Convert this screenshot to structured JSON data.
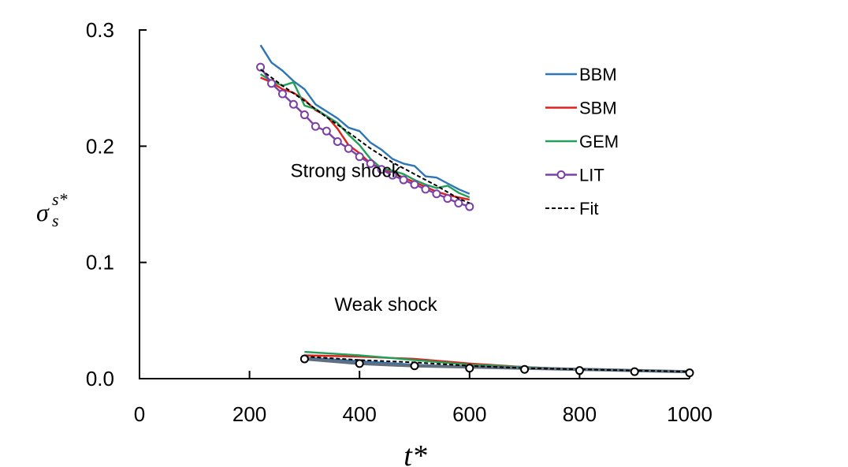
{
  "chart_data": {
    "type": "line",
    "title": "",
    "xlabel": "t*",
    "ylabel": "σ",
    "ylabel_subscript": "s",
    "ylabel_superscript": "s*",
    "xlim": [
      0,
      1000
    ],
    "ylim": [
      0,
      0.3
    ],
    "x_ticks": [
      0,
      200,
      400,
      600,
      800,
      1000
    ],
    "x_tick_labels": [
      "0",
      "200",
      "400",
      "600",
      "800",
      "1000"
    ],
    "y_ticks": [
      0,
      0.1,
      0.2,
      0.3
    ],
    "y_tick_labels": [
      "0.0",
      "0.1",
      "0.2",
      "0.3"
    ],
    "grid": false,
    "legend_position": "top-right",
    "annotations": [
      {
        "text": "Strong shock",
        "x": 220,
        "y": 0.17
      },
      {
        "text": "Weak shock",
        "x": 300,
        "y": 0.055
      }
    ],
    "series": [
      {
        "name": "BBM",
        "color": "#2E75B6",
        "group": "strong",
        "style": "solid",
        "x": [
          220,
          240,
          260,
          280,
          300,
          320,
          340,
          360,
          380,
          400,
          420,
          440,
          460,
          480,
          500,
          520,
          540,
          560,
          580,
          600
        ],
        "y": [
          0.287,
          0.272,
          0.265,
          0.256,
          0.249,
          0.236,
          0.23,
          0.224,
          0.216,
          0.213,
          0.203,
          0.197,
          0.189,
          0.185,
          0.183,
          0.174,
          0.173,
          0.168,
          0.163,
          0.159
        ]
      },
      {
        "name": "SBM",
        "color": "#E0201B",
        "group": "strong",
        "style": "solid",
        "x": [
          220,
          240,
          260,
          280,
          300,
          320,
          340,
          360,
          380,
          400,
          420,
          440,
          460,
          480,
          500,
          520,
          540,
          560,
          580,
          600
        ],
        "y": [
          0.259,
          0.255,
          0.249,
          0.246,
          0.24,
          0.231,
          0.226,
          0.215,
          0.201,
          0.194,
          0.185,
          0.181,
          0.177,
          0.173,
          0.169,
          0.165,
          0.161,
          0.158,
          0.156,
          0.154
        ]
      },
      {
        "name": "GEM",
        "color": "#22A05A",
        "group": "strong",
        "style": "solid",
        "x": [
          220,
          240,
          260,
          280,
          300,
          320,
          340,
          360,
          380,
          400,
          420,
          440,
          460,
          480,
          500,
          520,
          540,
          560,
          580,
          600
        ],
        "y": [
          0.262,
          0.256,
          0.252,
          0.255,
          0.235,
          0.232,
          0.226,
          0.22,
          0.21,
          0.201,
          0.189,
          0.181,
          0.179,
          0.176,
          0.171,
          0.167,
          0.164,
          0.166,
          0.16,
          0.156
        ]
      },
      {
        "name": "LIT",
        "color": "#7A3FA8",
        "group": "strong",
        "style": "solid-marker",
        "x": [
          220,
          240,
          260,
          280,
          300,
          320,
          340,
          360,
          380,
          400,
          420,
          440,
          460,
          480,
          500,
          520,
          540,
          560,
          580,
          600
        ],
        "y": [
          0.268,
          0.254,
          0.245,
          0.236,
          0.227,
          0.217,
          0.213,
          0.204,
          0.198,
          0.191,
          0.185,
          0.18,
          0.175,
          0.171,
          0.167,
          0.163,
          0.159,
          0.155,
          0.151,
          0.148
        ]
      },
      {
        "name": "Fit",
        "color": "#000000",
        "group": "strong",
        "style": "dashed",
        "x": [
          220,
          260,
          300,
          340,
          380,
          420,
          460,
          500,
          540,
          580,
          600
        ],
        "y": [
          0.266,
          0.252,
          0.239,
          0.225,
          0.212,
          0.198,
          0.186,
          0.176,
          0.166,
          0.155,
          0.151
        ]
      },
      {
        "name": "BBM",
        "color": "#2E75B6",
        "group": "weak",
        "style": "solid",
        "x": [
          300,
          400,
          500,
          600,
          700,
          800,
          900,
          1000
        ],
        "y": [
          0.018,
          0.015,
          0.012,
          0.01,
          0.009,
          0.008,
          0.007,
          0.006
        ]
      },
      {
        "name": "SBM",
        "color": "#E0201B",
        "group": "weak",
        "style": "solid",
        "x": [
          300,
          400,
          500,
          600,
          700,
          800,
          900,
          1000
        ],
        "y": [
          0.02,
          0.019,
          0.017,
          0.013,
          0.01,
          0.008,
          0.007,
          0.006
        ]
      },
      {
        "name": "GEM",
        "color": "#22A05A",
        "group": "weak",
        "style": "solid",
        "x": [
          300,
          400,
          500,
          600,
          700,
          800,
          900,
          1000
        ],
        "y": [
          0.023,
          0.02,
          0.016,
          0.012,
          0.01,
          0.008,
          0.007,
          0.006
        ]
      },
      {
        "name": "Gray",
        "color": "#5F6F7F",
        "group": "weak",
        "style": "solid-thick",
        "x": [
          300,
          400,
          500,
          600,
          700,
          800,
          900,
          1000
        ],
        "y": [
          0.017,
          0.013,
          0.011,
          0.01,
          0.009,
          0.008,
          0.007,
          0.006
        ]
      },
      {
        "name": "Fit",
        "color": "#000000",
        "group": "weak",
        "style": "dashed",
        "x": [
          300,
          400,
          500,
          600,
          700,
          800,
          900,
          1000
        ],
        "y": [
          0.019,
          0.016,
          0.014,
          0.011,
          0.009,
          0.008,
          0.007,
          0.006
        ]
      },
      {
        "name": "Weak data",
        "color": "#000000",
        "group": "weak",
        "style": "marker-only",
        "x": [
          300,
          400,
          500,
          600,
          700,
          800,
          900,
          1000
        ],
        "y": [
          0.017,
          0.013,
          0.011,
          0.009,
          0.008,
          0.007,
          0.006,
          0.005
        ]
      }
    ],
    "legend": [
      {
        "label": "BBM",
        "color": "#2E75B6",
        "style": "solid"
      },
      {
        "label": "SBM",
        "color": "#E0201B",
        "style": "solid"
      },
      {
        "label": "GEM",
        "color": "#22A05A",
        "style": "solid"
      },
      {
        "label": "LIT",
        "color": "#7A3FA8",
        "style": "solid-marker"
      },
      {
        "label": "Fit",
        "color": "#000000",
        "style": "dashed"
      }
    ]
  }
}
